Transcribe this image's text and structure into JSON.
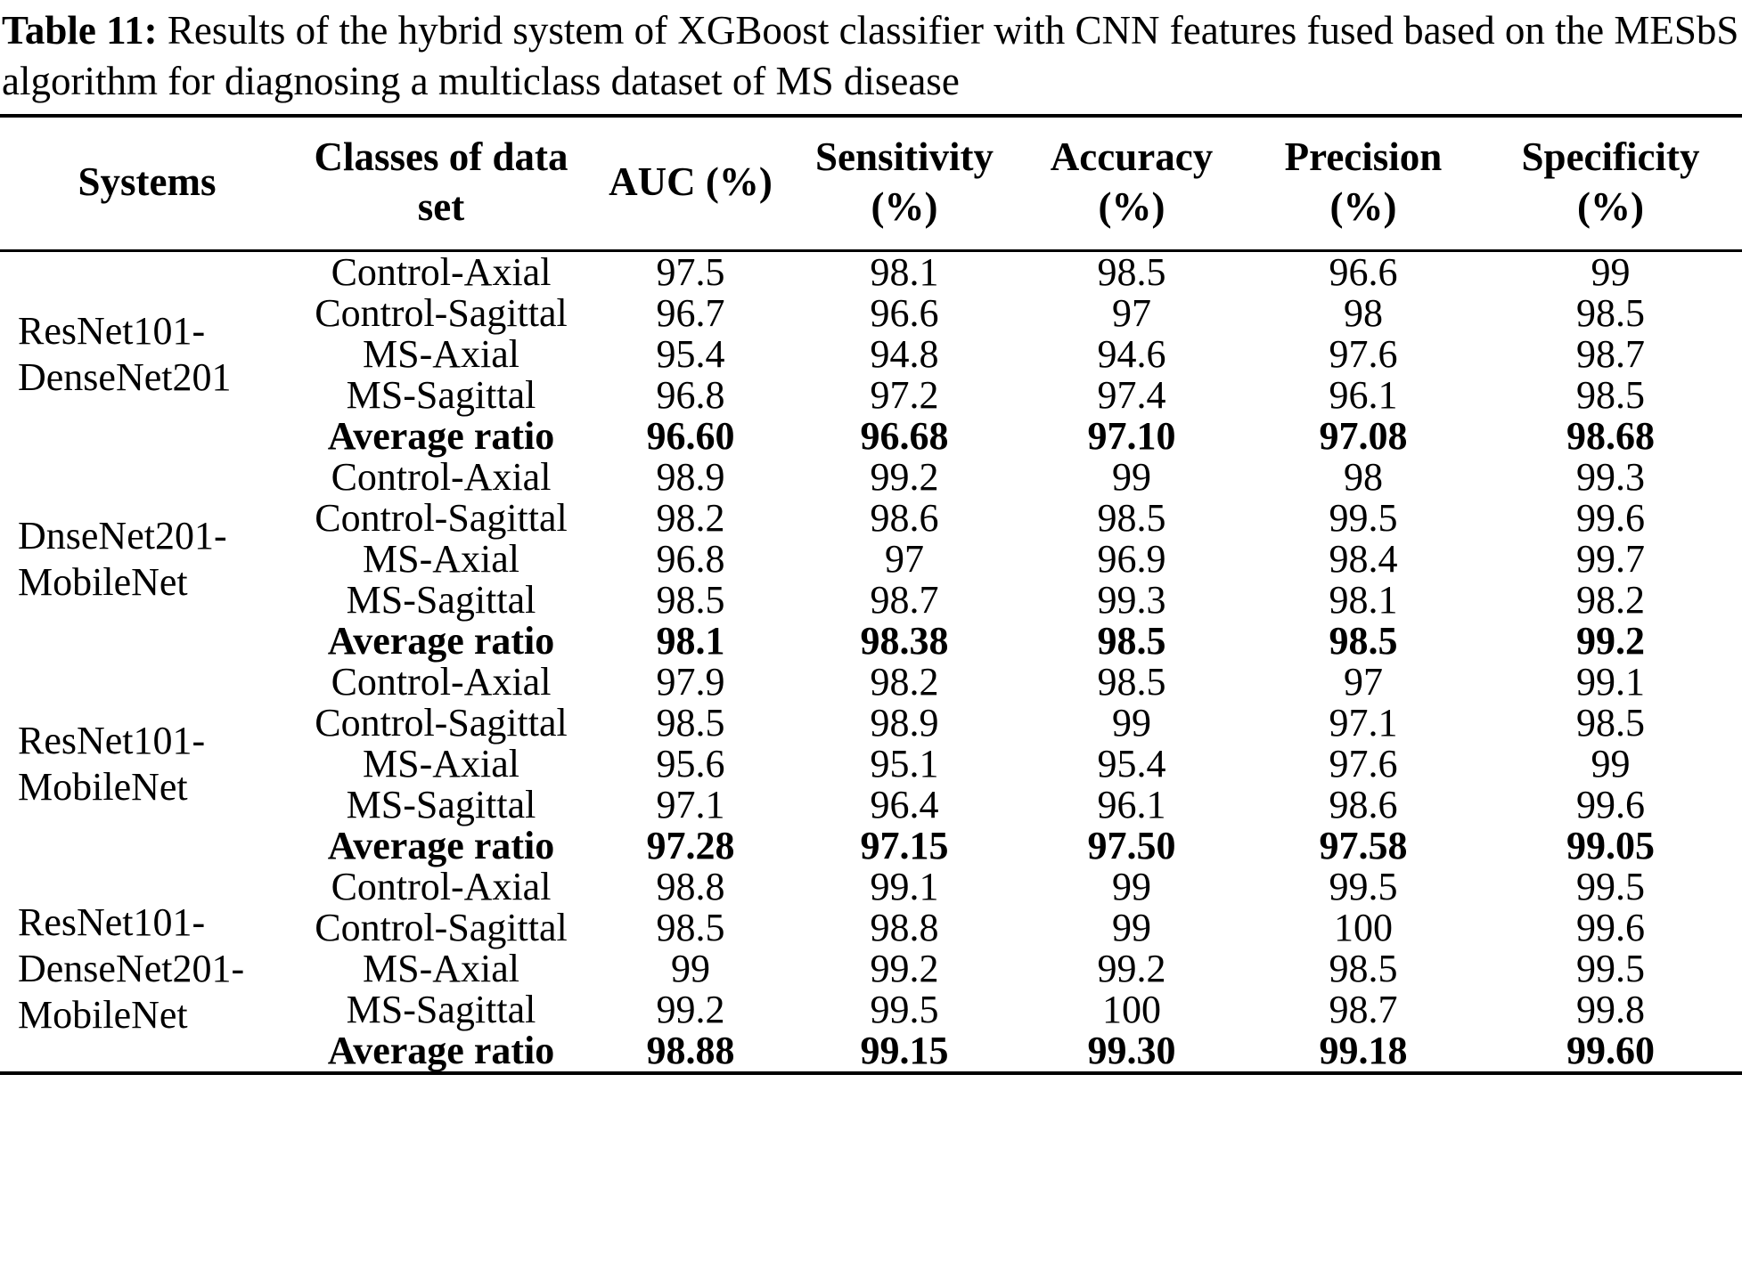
{
  "caption": {
    "label": "Table 11:",
    "text": " Results of the hybrid system of XGBoost classifier with CNN features fused based on the MESbS algorithm for diagnosing a multiclass dataset of MS disease"
  },
  "table": {
    "headers": [
      {
        "id": "systems",
        "lines": [
          "Systems"
        ]
      },
      {
        "id": "classes",
        "lines": [
          "Classes of data",
          "set"
        ]
      },
      {
        "id": "auc",
        "lines": [
          "AUC (%)"
        ]
      },
      {
        "id": "sensitivity",
        "lines": [
          "Sensitivity",
          "(%)"
        ]
      },
      {
        "id": "accuracy",
        "lines": [
          "Accuracy",
          "(%)"
        ]
      },
      {
        "id": "precision",
        "lines": [
          "Precision",
          "(%)"
        ]
      },
      {
        "id": "specificity",
        "lines": [
          "Specificity",
          "(%)"
        ]
      }
    ],
    "groups": [
      {
        "system": "ResNet101-DenseNet201",
        "system_lines": [
          "ResNet101-",
          "DenseNet201"
        ],
        "rows": [
          {
            "class": "Control-Axial",
            "bold": false,
            "values": [
              "97.5",
              "98.1",
              "98.5",
              "96.6",
              "99"
            ]
          },
          {
            "class": "Control-Sagittal",
            "bold": false,
            "values": [
              "96.7",
              "96.6",
              "97",
              "98",
              "98.5"
            ]
          },
          {
            "class": "MS-Axial",
            "bold": false,
            "values": [
              "95.4",
              "94.8",
              "94.6",
              "97.6",
              "98.7"
            ]
          },
          {
            "class": "MS-Sagittal",
            "bold": false,
            "values": [
              "96.8",
              "97.2",
              "97.4",
              "96.1",
              "98.5"
            ]
          },
          {
            "class": "Average ratio",
            "bold": true,
            "values": [
              "96.60",
              "96.68",
              "97.10",
              "97.08",
              "98.68"
            ]
          }
        ]
      },
      {
        "system": "DnseNet201-MobileNet",
        "system_lines": [
          "DnseNet201-",
          "MobileNet"
        ],
        "rows": [
          {
            "class": "Control-Axial",
            "bold": false,
            "values": [
              "98.9",
              "99.2",
              "99",
              "98",
              "99.3"
            ]
          },
          {
            "class": "Control-Sagittal",
            "bold": false,
            "values": [
              "98.2",
              "98.6",
              "98.5",
              "99.5",
              "99.6"
            ]
          },
          {
            "class": "MS-Axial",
            "bold": false,
            "values": [
              "96.8",
              "97",
              "96.9",
              "98.4",
              "99.7"
            ]
          },
          {
            "class": "MS-Sagittal",
            "bold": false,
            "values": [
              "98.5",
              "98.7",
              "99.3",
              "98.1",
              "98.2"
            ]
          },
          {
            "class": "Average ratio",
            "bold": true,
            "values": [
              "98.1",
              "98.38",
              "98.5",
              "98.5",
              "99.2"
            ]
          }
        ]
      },
      {
        "system": "ResNet101-MobileNet",
        "system_lines": [
          "ResNet101-",
          "MobileNet"
        ],
        "rows": [
          {
            "class": "Control-Axial",
            "bold": false,
            "values": [
              "97.9",
              "98.2",
              "98.5",
              "97",
              "99.1"
            ]
          },
          {
            "class": "Control-Sagittal",
            "bold": false,
            "values": [
              "98.5",
              "98.9",
              "99",
              "97.1",
              "98.5"
            ]
          },
          {
            "class": "MS-Axial",
            "bold": false,
            "values": [
              "95.6",
              "95.1",
              "95.4",
              "97.6",
              "99"
            ]
          },
          {
            "class": "MS-Sagittal",
            "bold": false,
            "values": [
              "97.1",
              "96.4",
              "96.1",
              "98.6",
              "99.6"
            ]
          },
          {
            "class": "Average ratio",
            "bold": true,
            "values": [
              "97.28",
              "97.15",
              "97.50",
              "97.58",
              "99.05"
            ]
          }
        ]
      },
      {
        "system": "ResNet101-DenseNet201-MobileNet",
        "system_lines": [
          "ResNet101-",
          "DenseNet201-",
          "MobileNet"
        ],
        "rows": [
          {
            "class": "Control-Axial",
            "bold": false,
            "values": [
              "98.8",
              "99.1",
              "99",
              "99.5",
              "99.5"
            ]
          },
          {
            "class": "Control-Sagittal",
            "bold": false,
            "values": [
              "98.5",
              "98.8",
              "99",
              "100",
              "99.6"
            ]
          },
          {
            "class": "MS-Axial",
            "bold": false,
            "values": [
              "99",
              "99.2",
              "99.2",
              "98.5",
              "99.5"
            ]
          },
          {
            "class": "MS-Sagittal",
            "bold": false,
            "values": [
              "99.2",
              "99.5",
              "100",
              "98.7",
              "99.8"
            ]
          },
          {
            "class": "Average ratio",
            "bold": true,
            "values": [
              "98.88",
              "99.15",
              "99.30",
              "99.18",
              "99.60"
            ]
          }
        ]
      }
    ]
  }
}
